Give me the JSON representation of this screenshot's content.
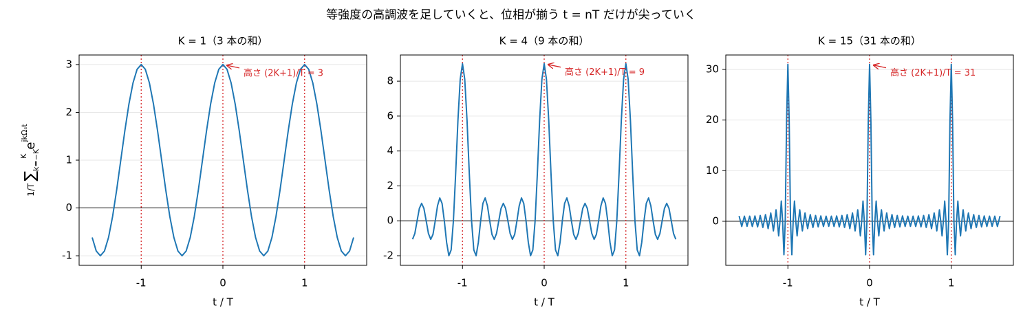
{
  "suptitle": "等強度の高調波を足していくと、位相が揃う t = nT だけが尖っていく",
  "chart_data": [
    {
      "type": "line",
      "title": "K = 1（3 本の和）",
      "xlabel": "t / T",
      "ylabel": {
        "frac": "1/T",
        "sum": "∑",
        "lower": "k=−K",
        "upper": "K",
        "term": "e",
        "exp": "jkΩₛt"
      },
      "color": "#1f77b4",
      "grid": true,
      "hline": 0,
      "vlines": [
        -1,
        0,
        1
      ],
      "vline_color": "#d62728",
      "annotation": {
        "text": "高さ (2K+1)/T = 3",
        "x": 0,
        "y": 3
      },
      "xlim": [
        -1.76,
        1.76
      ],
      "ylim": [
        -1.2,
        3.2
      ],
      "xticks": [
        -1,
        0,
        1
      ],
      "yticks": [
        -1,
        0,
        1,
        2,
        3
      ],
      "x": [
        -1.6,
        -1.55,
        -1.5,
        -1.45,
        -1.4,
        -1.35,
        -1.3,
        -1.25,
        -1.2,
        -1.15,
        -1.1,
        -1.05,
        -1,
        -0.95,
        -0.9,
        -0.85,
        -0.8,
        -0.75,
        -0.7,
        -0.65,
        -0.6,
        -0.55,
        -0.5,
        -0.45,
        -0.4,
        -0.35,
        -0.3,
        -0.25,
        -0.2,
        -0.15,
        -0.1,
        -0.05,
        0,
        0.05,
        0.1,
        0.15,
        0.2,
        0.25,
        0.3,
        0.35,
        0.4,
        0.45,
        0.5,
        0.55,
        0.6,
        0.65,
        0.7,
        0.75,
        0.8,
        0.85,
        0.9,
        0.95,
        1,
        1.05,
        1.1,
        1.15,
        1.2,
        1.25,
        1.3,
        1.35,
        1.4,
        1.45,
        1.5,
        1.55,
        1.6
      ],
      "values": [
        -0.618,
        -0.902,
        -1,
        -0.902,
        -0.618,
        -0.176,
        0.382,
        1,
        1.618,
        2.176,
        2.618,
        2.902,
        3,
        2.902,
        2.618,
        2.176,
        1.618,
        1,
        0.382,
        -0.176,
        -0.618,
        -0.902,
        -1,
        -0.902,
        -0.618,
        -0.176,
        0.382,
        1,
        1.618,
        2.176,
        2.618,
        2.902,
        3,
        2.902,
        2.618,
        2.176,
        1.618,
        1,
        0.382,
        -0.176,
        -0.618,
        -0.902,
        -1,
        -0.902,
        -0.618,
        -0.176,
        0.382,
        1,
        1.618,
        2.176,
        2.618,
        2.902,
        3,
        2.902,
        2.618,
        2.176,
        1.618,
        1,
        0.382,
        -0.176,
        -0.618,
        -0.902,
        -1,
        -0.902,
        -0.618
      ]
    },
    {
      "type": "line",
      "title": "K = 4（9 本の和）",
      "xlabel": "t / T",
      "color": "#1f77b4",
      "grid": true,
      "hline": 0,
      "vlines": [
        -1,
        0,
        1
      ],
      "vline_color": "#d62728",
      "annotation": {
        "text": "高さ (2K+1)/T = 9",
        "x": 0,
        "y": 9
      },
      "xlim": [
        -1.76,
        1.76
      ],
      "ylim": [
        -2.55,
        9.5
      ],
      "xticks": [
        -1,
        0,
        1
      ],
      "yticks": [
        -2,
        0,
        2,
        4,
        6,
        8
      ],
      "x": [
        -1.6111,
        -1.5833,
        -1.5556,
        -1.5278,
        -1.5,
        -1.4722,
        -1.4444,
        -1.4167,
        -1.3889,
        -1.3611,
        -1.3333,
        -1.3056,
        -1.2778,
        -1.25,
        -1.2222,
        -1.1944,
        -1.1667,
        -1.1389,
        -1.1111,
        -1.0833,
        -1.0556,
        -1.0278,
        -1,
        -0.9722,
        -0.9444,
        -0.9167,
        -0.8889,
        -0.8611,
        -0.8333,
        -0.8056,
        -0.7778,
        -0.75,
        -0.7222,
        -0.6944,
        -0.6667,
        -0.6389,
        -0.6111,
        -0.5833,
        -0.5556,
        -0.5278,
        -0.5,
        -0.4722,
        -0.4444,
        -0.4167,
        -0.3889,
        -0.3611,
        -0.3333,
        -0.3056,
        -0.2778,
        -0.25,
        -0.2222,
        -0.1944,
        -0.1667,
        -0.1389,
        -0.1111,
        -0.0833,
        -0.0556,
        -0.0278,
        0,
        0.0278,
        0.0556,
        0.0833,
        0.1111,
        0.1389,
        0.1667,
        0.1944,
        0.2222,
        0.25,
        0.2778,
        0.3056,
        0.3333,
        0.3611,
        0.3889,
        0.4167,
        0.4444,
        0.4722,
        0.5,
        0.5278,
        0.5556,
        0.5833,
        0.6111,
        0.6389,
        0.6667,
        0.6944,
        0.7222,
        0.75,
        0.7778,
        0.8056,
        0.8333,
        0.8611,
        0.8889,
        0.9167,
        0.9444,
        0.9722,
        1,
        1.0278,
        1.0556,
        1.0833,
        1.1111,
        1.1389,
        1.1667,
        1.1944,
        1.2222,
        1.25,
        1.2778,
        1.3056,
        1.3333,
        1.3611,
        1.3889,
        1.4167,
        1.4444,
        1.4722,
        1.5,
        1.5278,
        1.5556,
        1.5833,
        1.6111
      ],
      "values": [
        -1.06,
        -0.73,
        0,
        0.71,
        1,
        0.71,
        0,
        -0.73,
        -1.06,
        -0.78,
        0,
        0.86,
        1.31,
        1,
        0,
        -1.23,
        -2,
        -1.67,
        0,
        2.73,
        5.76,
        8.11,
        9,
        8.11,
        5.76,
        2.73,
        0,
        -1.67,
        -2,
        -1.23,
        0,
        1,
        1.31,
        0.86,
        0,
        -0.78,
        -1.06,
        -0.73,
        0,
        0.71,
        1,
        0.71,
        0,
        -0.73,
        -1.06,
        -0.78,
        0,
        0.86,
        1.31,
        1,
        0,
        -1.23,
        -2,
        -1.67,
        0,
        2.73,
        5.76,
        8.11,
        9,
        8.11,
        5.76,
        2.73,
        0,
        -1.67,
        -2,
        -1.23,
        0,
        1,
        1.31,
        0.86,
        0,
        -0.78,
        -1.06,
        -0.73,
        0,
        0.71,
        1,
        0.71,
        0,
        -0.73,
        -1.06,
        -0.78,
        0,
        0.86,
        1.31,
        1,
        0,
        -1.23,
        -2,
        -1.67,
        0,
        2.73,
        5.76,
        8.11,
        9,
        8.11,
        5.76,
        2.73,
        0,
        -1.67,
        -2,
        -1.23,
        0,
        1,
        1.31,
        0.86,
        0,
        -0.78,
        -1.06,
        -0.73,
        0,
        0.71,
        1,
        0.71,
        0,
        -0.73,
        -1.06
      ]
    },
    {
      "type": "line",
      "title": "K = 15（31 本の和）",
      "xlabel": "t / T",
      "color": "#1f77b4",
      "grid": true,
      "hline": 0,
      "vlines": [
        -1,
        0,
        1
      ],
      "vline_color": "#d62728",
      "annotation": {
        "text": "高さ (2K+1)/T = 31",
        "x": 0,
        "y": 31
      },
      "xlim": [
        -1.76,
        1.76
      ],
      "ylim": [
        -8.7,
        32.85
      ],
      "xticks": [
        -1,
        0,
        1
      ],
      "yticks": [
        0,
        10,
        20,
        30
      ],
      "x": [
        -1.5968,
        -1.5806,
        -1.5645,
        -1.5484,
        -1.5323,
        -1.5161,
        -1.5,
        -1.4839,
        -1.4677,
        -1.4516,
        -1.4355,
        -1.4194,
        -1.4032,
        -1.3871,
        -1.371,
        -1.3548,
        -1.3387,
        -1.3226,
        -1.3065,
        -1.2903,
        -1.2742,
        -1.2581,
        -1.2419,
        -1.2258,
        -1.2097,
        -1.1935,
        -1.1774,
        -1.1613,
        -1.1452,
        -1.129,
        -1.1129,
        -1.0968,
        -1.0806,
        -1.0645,
        -1.0484,
        -1.0323,
        -1.0161,
        -1,
        -0.9839,
        -0.9677,
        -0.9516,
        -0.9355,
        -0.9194,
        -0.9032,
        -0.8871,
        -0.871,
        -0.8548,
        -0.8387,
        -0.8226,
        -0.8065,
        -0.7903,
        -0.7742,
        -0.7581,
        -0.7419,
        -0.7258,
        -0.7097,
        -0.6935,
        -0.6774,
        -0.6613,
        -0.6452,
        -0.629,
        -0.6129,
        -0.5968,
        -0.5806,
        -0.5645,
        -0.5484,
        -0.5323,
        -0.5161,
        -0.5,
        -0.4839,
        -0.4677,
        -0.4516,
        -0.4355,
        -0.4194,
        -0.4032,
        -0.3871,
        -0.371,
        -0.3548,
        -0.3387,
        -0.3226,
        -0.3065,
        -0.2903,
        -0.2742,
        -0.2581,
        -0.2419,
        -0.2258,
        -0.2097,
        -0.1935,
        -0.1774,
        -0.1613,
        -0.1452,
        -0.129,
        -0.1129,
        -0.0968,
        -0.0806,
        -0.0645,
        -0.0484,
        -0.0323,
        -0.0161,
        0,
        0.0161,
        0.0323,
        0.0484,
        0.0645,
        0.0806,
        0.0968,
        0.1129,
        0.129,
        0.1452,
        0.1613,
        0.1774,
        0.1935,
        0.2097,
        0.2258,
        0.2419,
        0.2581,
        0.2742,
        0.2903,
        0.3065,
        0.3226,
        0.3387,
        0.3548,
        0.371,
        0.3871,
        0.4032,
        0.4194,
        0.4355,
        0.4516,
        0.4677,
        0.4839,
        0.5,
        0.5161,
        0.5323,
        0.5484,
        0.5645,
        0.5806,
        0.5968,
        0.6129,
        0.629,
        0.6452,
        0.6613,
        0.6774,
        0.6935,
        0.7097,
        0.7258,
        0.7419,
        0.7581,
        0.7742,
        0.7903,
        0.8065,
        0.8226,
        0.8387,
        0.8548,
        0.871,
        0.8871,
        0.9032,
        0.9194,
        0.9355,
        0.9516,
        0.9677,
        0.9839,
        1,
        1.0161,
        1.0323,
        1.0484,
        1.0645,
        1.0806,
        1.0968,
        1.1129,
        1.129,
        1.1452,
        1.1613,
        1.1774,
        1.1935,
        1.2097,
        1.2258,
        1.2419,
        1.2581,
        1.2742,
        1.2903,
        1.3065,
        1.3226,
        1.3387,
        1.3548,
        1.371,
        1.3871,
        1.4032,
        1.4194,
        1.4355,
        1.4516,
        1.4677,
        1.4839,
        1.5,
        1.5161,
        1.5323,
        1.5484,
        1.5645,
        1.5806,
        1.5968
      ],
      "values": [
        1.05,
        0,
        -1.02,
        0,
        1.01,
        0,
        -1,
        0,
        1.01,
        0,
        -1.02,
        0,
        1.05,
        0,
        -1.09,
        0,
        1.14,
        0,
        -1.22,
        0,
        1.32,
        0,
        -1.45,
        0,
        1.63,
        0,
        -1.89,
        0,
        2.27,
        0,
        -2.88,
        0,
        3.99,
        0,
        -6.6,
        0,
        19.76,
        31,
        19.76,
        0,
        -6.6,
        0,
        3.99,
        0,
        -2.88,
        0,
        2.27,
        0,
        -1.89,
        0,
        1.63,
        0,
        -1.45,
        0,
        1.32,
        0,
        -1.22,
        0,
        1.14,
        0,
        -1.09,
        0,
        1.05,
        0,
        -1.02,
        0,
        1.01,
        0,
        -1,
        0,
        1.01,
        0,
        -1.02,
        0,
        1.05,
        0,
        -1.09,
        0,
        1.14,
        0,
        -1.22,
        0,
        1.32,
        0,
        -1.45,
        0,
        1.63,
        0,
        -1.89,
        0,
        2.27,
        0,
        -2.88,
        0,
        3.99,
        0,
        -6.6,
        0,
        19.76,
        31,
        19.76,
        0,
        -6.6,
        0,
        3.99,
        0,
        -2.88,
        0,
        2.27,
        0,
        -1.89,
        0,
        1.63,
        0,
        -1.45,
        0,
        1.32,
        0,
        -1.22,
        0,
        1.14,
        0,
        -1.09,
        0,
        1.05,
        0,
        -1.02,
        0,
        1.01,
        0,
        -1,
        0,
        1.01,
        0,
        -1.02,
        0,
        1.05,
        0,
        -1.09,
        0,
        1.14,
        0,
        -1.22,
        0,
        1.32,
        0,
        -1.45,
        0,
        1.63,
        0,
        -1.89,
        0,
        2.27,
        0,
        -2.88,
        0,
        3.99,
        0,
        -6.6,
        0,
        19.76,
        31,
        19.76,
        0,
        -6.6,
        0,
        3.99,
        0,
        -2.88,
        0,
        2.27,
        0,
        -1.89,
        0,
        1.63,
        0,
        -1.45,
        0,
        1.32,
        0,
        -1.22,
        0,
        1.14,
        0,
        -1.09,
        0,
        1.05,
        0,
        -1.02,
        0,
        1.01,
        0,
        -1,
        0,
        1.01,
        0,
        -1.02,
        0,
        1.05
      ]
    }
  ]
}
